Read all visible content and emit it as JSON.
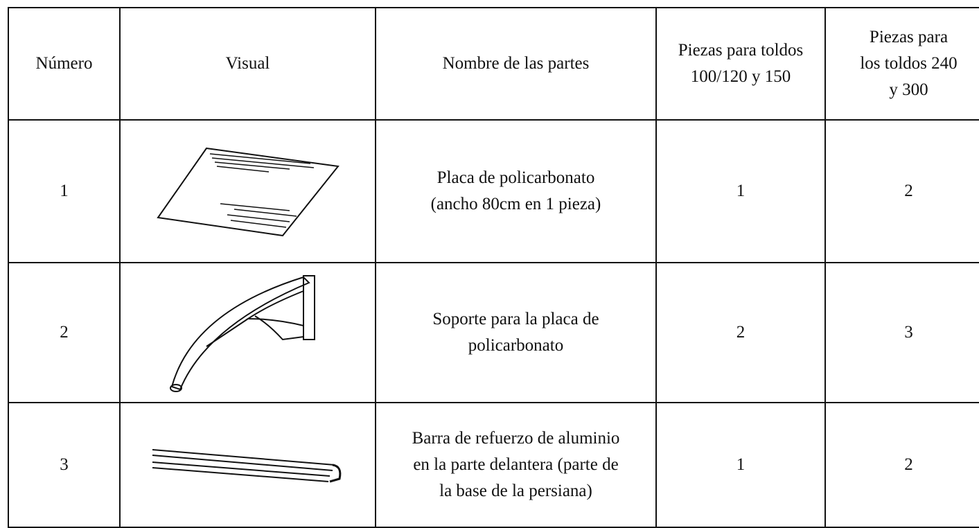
{
  "table": {
    "header": [
      [
        "Número"
      ],
      [
        "Visual"
      ],
      [
        "Nombre de las partes"
      ],
      [
        "Piezas para toldos",
        "100/120 y 150"
      ],
      [
        "Piezas para",
        "los toldos 240",
        "y 300"
      ]
    ],
    "rows": [
      {
        "number": "1",
        "name": [
          "Placa de policarbonato",
          "(ancho 80cm en 1 pieza)"
        ],
        "small": "1",
        "large": "2"
      },
      {
        "number": "2",
        "name": [
          "Soporte para la placa de",
          "policarbonato"
        ],
        "small": "2",
        "large": "3"
      },
      {
        "number": "3",
        "name": [
          "Barra de refuerzo de aluminio",
          "en la parte delantera (parte de",
          "la base de la persiana)"
        ],
        "small": "1",
        "large": "2"
      }
    ]
  }
}
